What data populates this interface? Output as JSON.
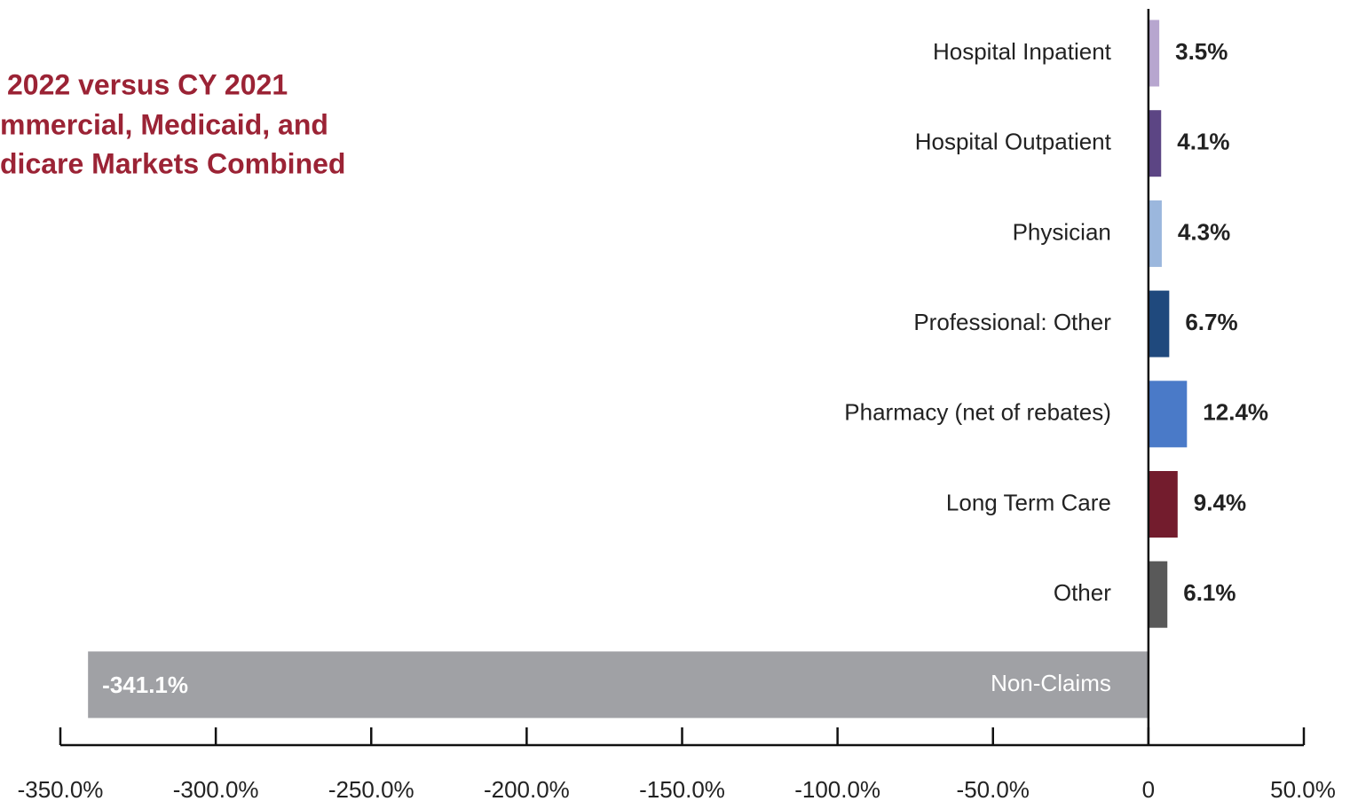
{
  "chart_data": {
    "type": "barh",
    "title_lines": [
      "2022 versus CY 2021",
      "mmercial, Medicaid, and",
      "dicare Markets Combined"
    ],
    "categories": [
      "Hospital Inpatient",
      "Hospital Outpatient",
      "Physician",
      "Professional: Other",
      "Pharmacy (net of rebates)",
      "Long Term Care",
      "Other",
      "Non-Claims"
    ],
    "values": [
      3.5,
      4.1,
      4.3,
      6.7,
      12.4,
      9.4,
      6.1,
      -341.1
    ],
    "value_labels": [
      "3.5%",
      "4.1%",
      "4.3%",
      "6.7%",
      "12.4%",
      "9.4%",
      "6.1%",
      "-341.1%"
    ],
    "colors": [
      "#b7a6cf",
      "#5c4584",
      "#9bb7dd",
      "#1f497d",
      "#4a7ac8",
      "#731c2d",
      "#595959",
      "#a0a1a5"
    ],
    "xlim": [
      -350,
      50
    ],
    "xticks": [
      {
        "value": -350,
        "label": "-350.0%"
      },
      {
        "value": -300,
        "label": "-300.0%"
      },
      {
        "value": -250,
        "label": "-250.0%"
      },
      {
        "value": -200,
        "label": "-200.0%"
      },
      {
        "value": -150,
        "label": "-150.0%"
      },
      {
        "value": -100,
        "label": "-100.0%"
      },
      {
        "value": -50,
        "label": "-50.0%"
      },
      0,
      {
        "value": 50,
        "label": "50.0%"
      }
    ]
  }
}
